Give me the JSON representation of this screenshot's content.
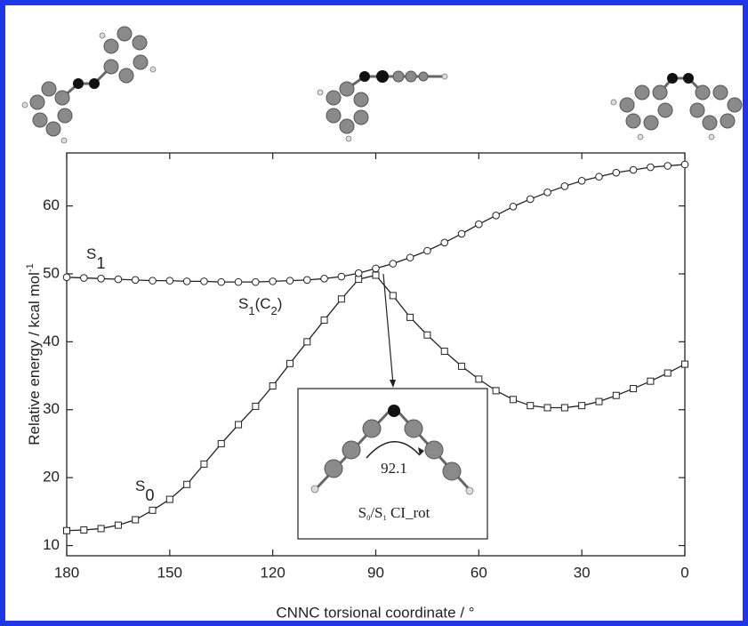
{
  "chart_data": {
    "type": "line",
    "xlabel": "CNNC torsional coordinate / °",
    "ylabel_parts": [
      "Relative energy / kcal mol",
      "-1"
    ],
    "x": [
      180,
      175,
      170,
      165,
      160,
      155,
      150,
      145,
      140,
      135,
      130,
      125,
      120,
      115,
      110,
      105,
      100,
      95,
      90,
      85,
      80,
      75,
      70,
      65,
      60,
      55,
      50,
      45,
      40,
      35,
      30,
      25,
      20,
      15,
      10,
      5,
      0
    ],
    "series": [
      {
        "label_parts": [
          "S",
          "0"
        ],
        "color": "#222222",
        "marker": "square",
        "values": [
          12.2,
          12.3,
          12.5,
          13.0,
          13.8,
          15.2,
          16.8,
          19.0,
          22.0,
          25.0,
          27.8,
          30.5,
          33.5,
          36.8,
          40.0,
          43.2,
          46.3,
          49.2,
          49.8,
          46.8,
          43.6,
          41.0,
          38.6,
          36.4,
          34.5,
          32.8,
          31.5,
          30.6,
          30.3,
          30.3,
          30.6,
          31.2,
          32.1,
          33.1,
          34.2,
          35.4,
          36.7
        ]
      },
      {
        "label_parts": [
          "S",
          "1"
        ],
        "color": "#222222",
        "marker": "circle",
        "values": [
          49.5,
          49.4,
          49.3,
          49.2,
          49.1,
          49.0,
          49.0,
          48.9,
          48.9,
          48.8,
          48.8,
          48.8,
          48.9,
          49.0,
          49.1,
          49.3,
          49.6,
          50.1,
          50.8,
          51.5,
          52.4,
          53.4,
          54.6,
          55.9,
          57.3,
          58.6,
          59.9,
          61.0,
          62.0,
          62.9,
          63.7,
          64.3,
          64.9,
          65.3,
          65.7,
          65.9,
          66.1
        ]
      }
    ],
    "annotation_parts": [
      "S",
      "1",
      "(C",
      "2",
      ")"
    ],
    "inset": {
      "angle": "92.1",
      "label_parts": [
        "S",
        "0",
        "/S",
        "1",
        " CI_rot"
      ]
    },
    "xlim": [
      180,
      0
    ],
    "xticks": [
      180,
      150,
      120,
      90,
      60,
      30,
      0
    ],
    "ylim": [
      8.5,
      67.8
    ],
    "yticks": [
      10,
      20,
      30,
      40,
      50,
      60
    ]
  }
}
